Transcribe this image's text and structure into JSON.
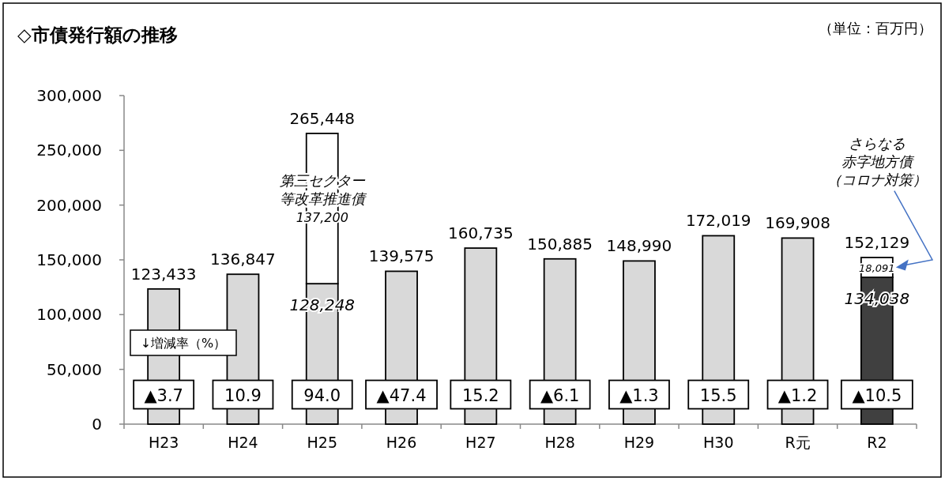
{
  "chart_data": {
    "type": "bar",
    "title": "◇市債発行額の推移",
    "stacked": true,
    "categories": [
      "H23",
      "H24",
      "H25",
      "H26",
      "H27",
      "H28",
      "H29",
      "H30",
      "R元",
      "R2"
    ],
    "series": [
      {
        "colors": [
          "#d9d9d9",
          "#d9d9d9",
          "#d9d9d9",
          "#d9d9d9",
          "#d9d9d9",
          "#d9d9d9",
          "#d9d9d9",
          "#d9d9d9",
          "#d9d9d9",
          "#404040"
        ],
        "values": [
          123433,
          136847,
          128248,
          139575,
          160735,
          150885,
          148990,
          172019,
          169908,
          134038
        ],
        "value_labels": [
          "123,433",
          "136,847",
          "128,248",
          "139,575",
          "160,735",
          "150,885",
          "148,990",
          "172,019",
          "169,908",
          "134,038"
        ]
      },
      {
        "color": "#ffffff",
        "values": [
          null,
          null,
          137200,
          null,
          null,
          null,
          null,
          null,
          null,
          18091
        ],
        "value_labels": [
          null,
          null,
          "137,200",
          null,
          null,
          null,
          null,
          null,
          null,
          "18,091"
        ]
      }
    ],
    "totals": [
      null,
      null,
      "265,448",
      null,
      null,
      null,
      null,
      null,
      null,
      "152,129"
    ],
    "ylim": [
      0,
      300000
    ],
    "yticks": [
      {
        "value": 0,
        "label": "0"
      },
      {
        "value": 50000,
        "label": "50,000"
      },
      {
        "value": 100000,
        "label": "100,000"
      },
      {
        "value": 150000,
        "label": "150,000"
      },
      {
        "value": 200000,
        "label": "200,000"
      },
      {
        "value": 250000,
        "label": "250,000"
      },
      {
        "value": 300000,
        "label": "300,000"
      }
    ],
    "annotations": [
      "（単位：百万円）",
      "↓増減率（%）",
      "第三セクター等改革推進債",
      "さらなる赤字地方債（コロナ対策）",
      "▲3.7",
      "10.9",
      "94.0",
      "▲47.4",
      "15.2",
      "▲6.1",
      "▲1.3",
      "15.5",
      "▲1.2",
      "▲10.5"
    ]
  }
}
